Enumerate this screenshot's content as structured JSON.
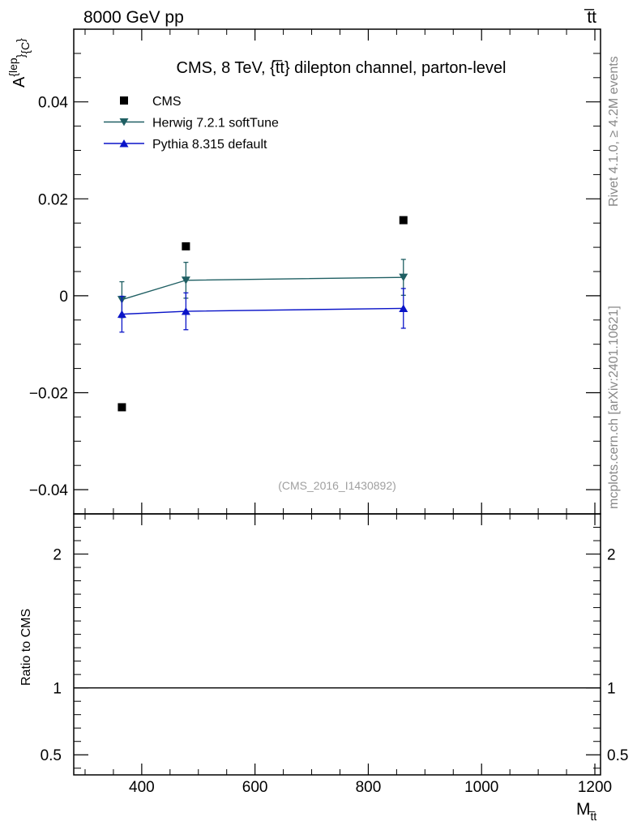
{
  "header": {
    "left": "8000 GeV pp",
    "right": "t̅t"
  },
  "side_text": {
    "rivet": "Rivet 4.1.0, ≥ 4.2M events",
    "mcplots": "mcplots.cern.ch [arXiv:2401.10621]"
  },
  "chart_data": {
    "type": "scatter",
    "title": "CMS, 8 TeV, {t̅t} dilepton channel, parton-level",
    "analysis_label": "(CMS_2016_I1430892)",
    "ylabel": "A^{lep}_{C}",
    "xlabel": "M_t̅t",
    "ratio_ylabel": "Ratio to CMS",
    "xlim": [
      280,
      1210
    ],
    "ylim": [
      -0.045,
      0.055
    ],
    "ratio_ylim": [
      0.35,
      2.3
    ],
    "x_ticks": [
      400,
      600,
      800,
      1000,
      1200
    ],
    "x_tick_labels": [
      "400",
      "600",
      "800",
      "1000",
      "1200"
    ],
    "y_ticks": [
      -0.04,
      -0.02,
      0,
      0.02,
      0.04
    ],
    "y_tick_labels": [
      "−0.04",
      "−0.02",
      "0",
      "0.02",
      "0.04"
    ],
    "ratio_ticks": [
      0.5,
      1,
      2
    ],
    "ratio_tick_labels": [
      "0.5",
      "1",
      "2"
    ],
    "ratio_reference": 1,
    "series": [
      {
        "name": "CMS",
        "color": "#000000",
        "marker": "square",
        "x": [
          365,
          478,
          862
        ],
        "y": [
          -0.023,
          0.0102,
          0.0156
        ]
      },
      {
        "name": "Herwig 7.2.1 softTune",
        "color": "#1f5f63",
        "marker": "triangle-down",
        "x": [
          365,
          478,
          862
        ],
        "y": [
          -0.0008,
          0.0032,
          0.0038
        ],
        "err": [
          0.0037,
          0.0037,
          0.0037
        ]
      },
      {
        "name": "Pythia 8.315 default",
        "color": "#0a14c8",
        "marker": "triangle-up",
        "x": [
          365,
          478,
          862
        ],
        "y": [
          -0.0038,
          -0.0032,
          -0.0026
        ],
        "err": [
          0.0037,
          0.0038,
          0.0041
        ]
      }
    ]
  }
}
